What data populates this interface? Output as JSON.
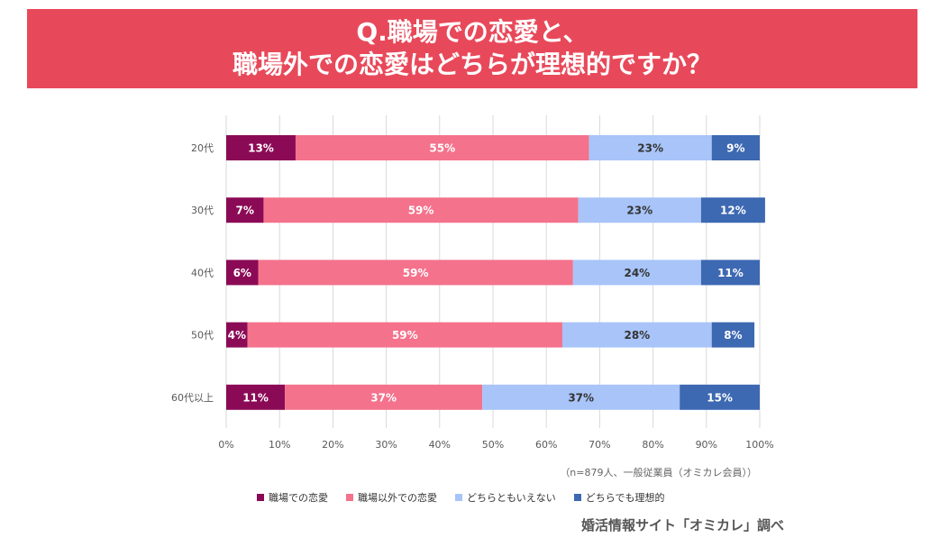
{
  "header": {
    "title_line1": "Q.職場での恋愛と、",
    "title_line2": "職場外での恋愛はどちらが理想的ですか？"
  },
  "chart_data": {
    "type": "bar",
    "orientation": "horizontal",
    "stacked": true,
    "percent": true,
    "categories": [
      "20代",
      "30代",
      "40代",
      "50代",
      "60代以上"
    ],
    "series": [
      {
        "name": "職場での恋愛",
        "color": "#8b0a56",
        "label_color": "#ffffff",
        "values": [
          13,
          7,
          6,
          4,
          11
        ],
        "labels": [
          "13%",
          "7%",
          "6%",
          "4%",
          "11%"
        ]
      },
      {
        "name": "職場以外での恋愛",
        "color": "#f4728c",
        "label_color": "#ffffff",
        "values": [
          55,
          59,
          59,
          59,
          37
        ],
        "labels": [
          "55%",
          "59%",
          "59%",
          "59%",
          "37%"
        ]
      },
      {
        "name": "どちらともいえない",
        "color": "#a8c4f8",
        "label_color": "#333333",
        "values": [
          23,
          23,
          24,
          28,
          37
        ],
        "labels": [
          "23%",
          "23%",
          "24%",
          "28%",
          "37%"
        ]
      },
      {
        "name": "どちらでも理想的",
        "color": "#3d68b2",
        "label_color": "#ffffff",
        "values": [
          9,
          12,
          11,
          8,
          15
        ],
        "labels": [
          "9%",
          "12%",
          "11%",
          "8%",
          "15%"
        ]
      }
    ],
    "xlim": [
      0,
      100
    ],
    "x_ticks": [
      "0%",
      "10%",
      "20%",
      "30%",
      "40%",
      "50%",
      "60%",
      "70%",
      "80%",
      "90%",
      "100%"
    ],
    "grid": true,
    "legend_position": "bottom"
  },
  "note": "（n=879人、一般従業員（オミカレ会員））",
  "source": "婚活情報サイト「オミカレ」調べ"
}
